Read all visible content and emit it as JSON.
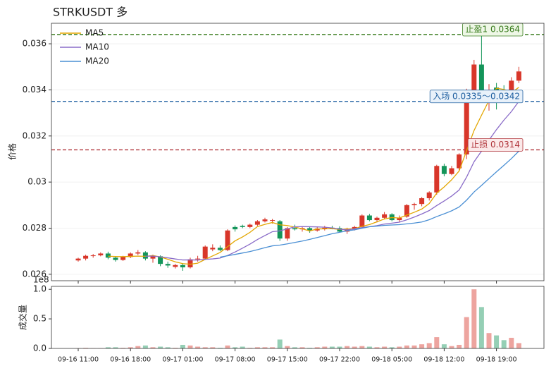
{
  "chart_data": {
    "type": "candlestick",
    "title": "STRKUSDT 多",
    "ylabel": "价格",
    "categories": [
      "09-16 11:00",
      null,
      null,
      null,
      null,
      null,
      null,
      "09-16 18:00",
      null,
      null,
      null,
      null,
      null,
      null,
      "09-17 01:00",
      null,
      null,
      null,
      null,
      null,
      null,
      "09-17 08:00",
      null,
      null,
      null,
      null,
      null,
      null,
      "09-17 15:00",
      null,
      null,
      null,
      null,
      null,
      null,
      "09-17 22:00",
      null,
      null,
      null,
      null,
      null,
      null,
      "09-18 05:00",
      null,
      null,
      null,
      null,
      null,
      null,
      "09-18 12:00",
      null,
      null,
      null,
      null,
      null,
      null,
      "09-18 19:00",
      null,
      null,
      null
    ],
    "open": [
      0.0266,
      0.02668,
      0.0268,
      0.02682,
      0.0269,
      0.02672,
      0.02662,
      0.02675,
      0.0269,
      0.02695,
      0.02668,
      0.02678,
      0.02645,
      0.02632,
      0.0264,
      0.0263,
      0.02665,
      0.02668,
      0.02708,
      0.02715,
      0.02705,
      0.02805,
      0.0281,
      0.02805,
      0.02815,
      0.0283,
      0.02832,
      0.0283,
      0.02755,
      0.028,
      0.02795,
      0.028,
      0.0279,
      0.02798,
      0.02802,
      0.028,
      0.02785,
      0.02798,
      0.02805,
      0.02855,
      0.02835,
      0.02845,
      0.0286,
      0.02835,
      0.0285,
      0.029,
      0.02905,
      0.0293,
      0.02955,
      0.0307,
      0.03035,
      0.0306,
      0.0312,
      0.03395,
      0.0351,
      0.03365,
      0.0341,
      0.034,
      0.03395,
      0.0344
    ],
    "high": [
      0.02672,
      0.02685,
      0.02688,
      0.02695,
      0.02698,
      0.02678,
      0.0268,
      0.02695,
      0.02705,
      0.027,
      0.02685,
      0.02682,
      0.02655,
      0.02645,
      0.02648,
      0.02672,
      0.0268,
      0.02725,
      0.0273,
      0.02725,
      0.02795,
      0.02812,
      0.02815,
      0.0282,
      0.02835,
      0.02845,
      0.0284,
      0.02835,
      0.02805,
      0.02815,
      0.02808,
      0.02805,
      0.02805,
      0.0281,
      0.0281,
      0.02808,
      0.02802,
      0.0281,
      0.0286,
      0.02862,
      0.0285,
      0.0287,
      0.02865,
      0.02855,
      0.02905,
      0.0291,
      0.02935,
      0.0296,
      0.03075,
      0.0308,
      0.0307,
      0.03125,
      0.03405,
      0.0353,
      0.0364,
      0.03425,
      0.0343,
      0.0342,
      0.03455,
      0.035
    ],
    "low": [
      0.02655,
      0.0266,
      0.02672,
      0.02678,
      0.02665,
      0.02655,
      0.02658,
      0.0267,
      0.02683,
      0.0266,
      0.0265,
      0.02635,
      0.02628,
      0.02625,
      0.02615,
      0.02625,
      0.02655,
      0.02662,
      0.027,
      0.027,
      0.027,
      0.02785,
      0.028,
      0.028,
      0.0281,
      0.02825,
      0.0282,
      0.02745,
      0.02745,
      0.0279,
      0.02785,
      0.0278,
      0.02785,
      0.0279,
      0.02795,
      0.0278,
      0.02775,
      0.0279,
      0.028,
      0.0283,
      0.02825,
      0.02838,
      0.0283,
      0.02825,
      0.02845,
      0.0288,
      0.02895,
      0.0292,
      0.02945,
      0.03025,
      0.0303,
      0.0305,
      0.031,
      0.0337,
      0.0335,
      0.0331,
      0.03315,
      0.03345,
      0.03375,
      0.0343
    ],
    "close": [
      0.02668,
      0.0268,
      0.02682,
      0.0269,
      0.02672,
      0.02662,
      0.02675,
      0.0269,
      0.02695,
      0.02668,
      0.02678,
      0.02645,
      0.02638,
      0.0264,
      0.0263,
      0.02665,
      0.02668,
      0.0272,
      0.02715,
      0.02705,
      0.0279,
      0.02795,
      0.02805,
      0.02815,
      0.0283,
      0.02838,
      0.02835,
      0.02755,
      0.028,
      0.02795,
      0.028,
      0.0279,
      0.02798,
      0.02802,
      0.02798,
      0.02785,
      0.02798,
      0.02805,
      0.02855,
      0.02835,
      0.02845,
      0.0286,
      0.02835,
      0.02845,
      0.029,
      0.02905,
      0.0293,
      0.02955,
      0.0307,
      0.03035,
      0.0306,
      0.0312,
      0.03395,
      0.0351,
      0.03365,
      0.0338,
      0.03385,
      0.0337,
      0.0344,
      0.0348
    ],
    "up_color": "#d8362a",
    "down_color": "#14955a",
    "series": [
      {
        "name": "MA5",
        "color": "#e3a600",
        "values": [
          null,
          null,
          null,
          null,
          0.026784,
          0.026772,
          0.026762,
          0.026778,
          0.026788,
          0.02678,
          0.026812,
          0.026752,
          0.026648,
          0.026538,
          0.026462,
          0.026436,
          0.026482,
          0.026646,
          0.026796,
          0.026946,
          0.027196,
          0.02745,
          0.02762,
          0.02782,
          0.02807,
          0.028166,
          0.028246,
          0.028146,
          0.028116,
          0.028046,
          0.02797,
          0.02788,
          0.027966,
          0.02797,
          0.027976,
          0.027946,
          0.027962,
          0.027976,
          0.028082,
          0.028156,
          0.028276,
          0.0284,
          0.02846,
          0.02844,
          0.02857,
          0.02869,
          0.02883,
          0.02907,
          0.02952,
          0.02979,
          0.0301,
          0.03048,
          0.03136,
          0.03224,
          0.0329,
          0.03354,
          0.03407,
          0.03402,
          0.03388,
          0.03411
        ]
      },
      {
        "name": "MA10",
        "color": "#8a6cc8",
        "values": [
          null,
          null,
          null,
          null,
          null,
          null,
          null,
          null,
          null,
          0.026782,
          0.026792,
          0.026757,
          0.026713,
          0.026663,
          0.026621,
          0.026624,
          0.026617,
          0.026647,
          0.026667,
          0.026704,
          0.026816,
          0.026966,
          0.027133,
          0.027308,
          0.027508,
          0.027681,
          0.027848,
          0.027883,
          0.027968,
          0.028058,
          0.028068,
          0.028063,
          0.028056,
          0.028043,
          0.028011,
          0.027958,
          0.027921,
          0.027971,
          0.028026,
          0.028066,
          0.028111,
          0.028181,
          0.028218,
          0.028261,
          0.028363,
          0.028483,
          0.028615,
          0.028765,
          0.02898,
          0.02918,
          0.029395,
          0.029655,
          0.030215,
          0.03088,
          0.031345,
          0.03182,
          0.032275,
          0.03269,
          0.03306,
          0.033505
        ]
      },
      {
        "name": "MA20",
        "color": "#4a8fd4",
        "values": [
          null,
          null,
          null,
          null,
          null,
          null,
          null,
          null,
          null,
          null,
          null,
          null,
          null,
          null,
          null,
          null,
          null,
          null,
          null,
          0.026743,
          0.026804,
          0.026862,
          0.026923,
          0.026986,
          0.027065,
          0.027153,
          0.027233,
          0.027265,
          0.027318,
          0.027381,
          0.027442,
          0.027515,
          0.027595,
          0.027676,
          0.02776,
          0.02782,
          0.027885,
          0.027927,
          0.027997,
          0.028062,
          0.02809,
          0.028122,
          0.028137,
          0.028152,
          0.028187,
          0.028221,
          0.028268,
          0.028368,
          0.028503,
          0.028623,
          0.028753,
          0.028918,
          0.029217,
          0.029571,
          0.029854,
          0.030152,
          0.030445,
          0.030728,
          0.03102,
          0.031343
        ]
      }
    ],
    "hlines": [
      {
        "label": "止盈1 0.0364",
        "value": 0.0364,
        "color": "#3a7d1e",
        "fill": "#eef7e6"
      },
      {
        "label": "入场 0.0335～0.0342",
        "value": 0.0335,
        "color": "#1f5fa0",
        "fill": "#e8f1fa"
      },
      {
        "label": "止损 0.0314",
        "value": 0.0314,
        "color": "#b0343a",
        "fill": "#fbe9e9"
      }
    ],
    "ylim": [
      0.02572,
      0.03689
    ],
    "yticks": [
      0.026,
      0.028,
      0.03,
      0.032,
      0.034,
      0.036
    ],
    "grid": true,
    "legend": "upper left",
    "volume": {
      "ylabel": "成交量",
      "offset_label": "1e8",
      "ylim": [
        0,
        1.05
      ],
      "yticks": [
        {
          "value": 0,
          "label": "0.0"
        },
        0.5,
        {
          "value": 1,
          "label": "1.0"
        }
      ],
      "values": [
        0.005,
        0.01,
        0.005,
        0.005,
        0.02,
        0.02,
        0.01,
        0.02,
        0.04,
        0.05,
        0.02,
        0.03,
        0.02,
        0.01,
        0.06,
        0.05,
        0.03,
        0.02,
        0.02,
        0.01,
        0.05,
        0.02,
        0.03,
        0.01,
        0.02,
        0.02,
        0.02,
        0.15,
        0.04,
        0.02,
        0.02,
        0.01,
        0.02,
        0.03,
        0.03,
        0.03,
        0.04,
        0.03,
        0.04,
        0.03,
        0.02,
        0.03,
        0.02,
        0.03,
        0.05,
        0.05,
        0.07,
        0.09,
        0.19,
        0.07,
        0.04,
        0.06,
        0.53,
        1.0,
        0.7,
        0.26,
        0.22,
        0.14,
        0.18,
        0.09
      ]
    }
  }
}
